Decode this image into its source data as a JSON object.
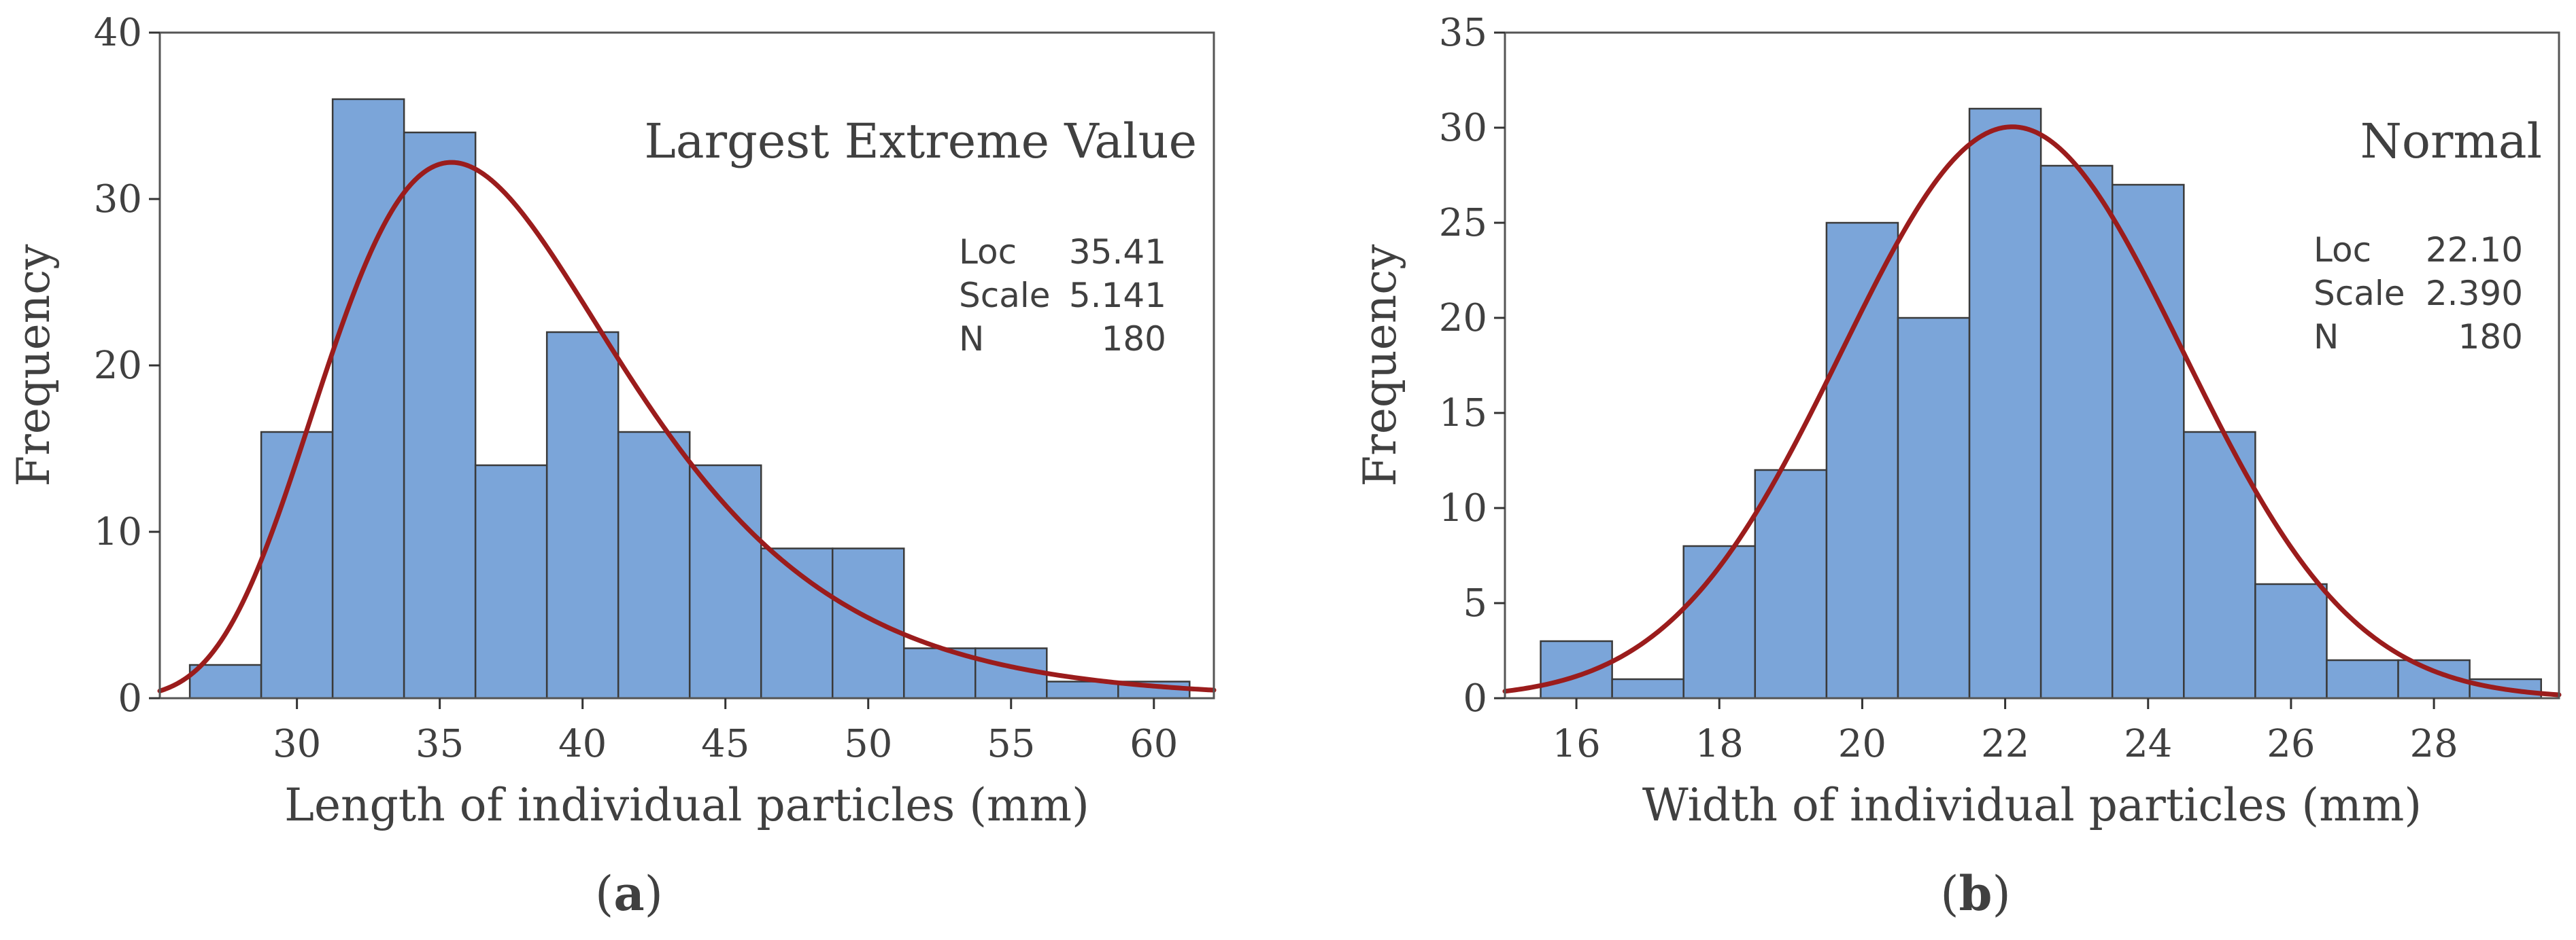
{
  "colors": {
    "bar": "#7ba5d9",
    "fit": "#9b1c1c",
    "text": "#404040"
  },
  "chart_data": [
    {
      "type": "bar",
      "subtype": "histogram",
      "panel_label": "a",
      "xlabel": "Length of individual particles (mm)",
      "ylabel": "Frequency",
      "distribution": "Largest Extreme Value",
      "stats": [
        {
          "label": "Loc",
          "value": "35.41"
        },
        {
          "label": "Scale",
          "value": "5.141"
        },
        {
          "label": "N",
          "value": "180"
        }
      ],
      "fit": {
        "kind": "gumbel_max",
        "loc": 35.41,
        "scale": 5.141,
        "n": 180
      },
      "xlim": [
        25.2,
        62.1
      ],
      "ylim": [
        0,
        40
      ],
      "xticks": [
        30,
        35,
        40,
        45,
        50,
        55,
        60
      ],
      "yticks": [
        0,
        10,
        20,
        30,
        40
      ],
      "bin_edges": [
        26.25,
        28.75,
        31.25,
        33.75,
        36.25,
        38.75,
        41.25,
        43.75,
        46.25,
        48.75,
        51.25,
        53.75,
        56.25,
        58.75,
        61.25
      ],
      "values": [
        2,
        16,
        36,
        34,
        14,
        22,
        16,
        14,
        9,
        9,
        3,
        3,
        1,
        1
      ]
    },
    {
      "type": "bar",
      "subtype": "histogram",
      "panel_label": "b",
      "xlabel": "Width of individual particles (mm)",
      "ylabel": "Frequency",
      "distribution": "Normal",
      "stats": [
        {
          "label": "Loc",
          "value": "22.10"
        },
        {
          "label": "Scale",
          "value": "2.390"
        },
        {
          "label": "N",
          "value": "180"
        }
      ],
      "fit": {
        "kind": "normal",
        "loc": 22.1,
        "scale": 2.39,
        "n": 180
      },
      "xlim": [
        15,
        29.75
      ],
      "ylim": [
        0,
        35
      ],
      "xticks": [
        16,
        18,
        20,
        22,
        24,
        26,
        28
      ],
      "yticks": [
        0,
        5,
        10,
        15,
        20,
        25,
        30,
        35
      ],
      "bin_edges": [
        15.5,
        16.5,
        17.5,
        18.5,
        19.5,
        20.5,
        21.5,
        22.5,
        23.5,
        24.5,
        25.5,
        26.5,
        27.5,
        28.5,
        29.5
      ],
      "values": [
        3,
        1,
        8,
        12,
        25,
        20,
        31,
        28,
        27,
        14,
        6,
        2,
        2,
        1
      ]
    }
  ]
}
